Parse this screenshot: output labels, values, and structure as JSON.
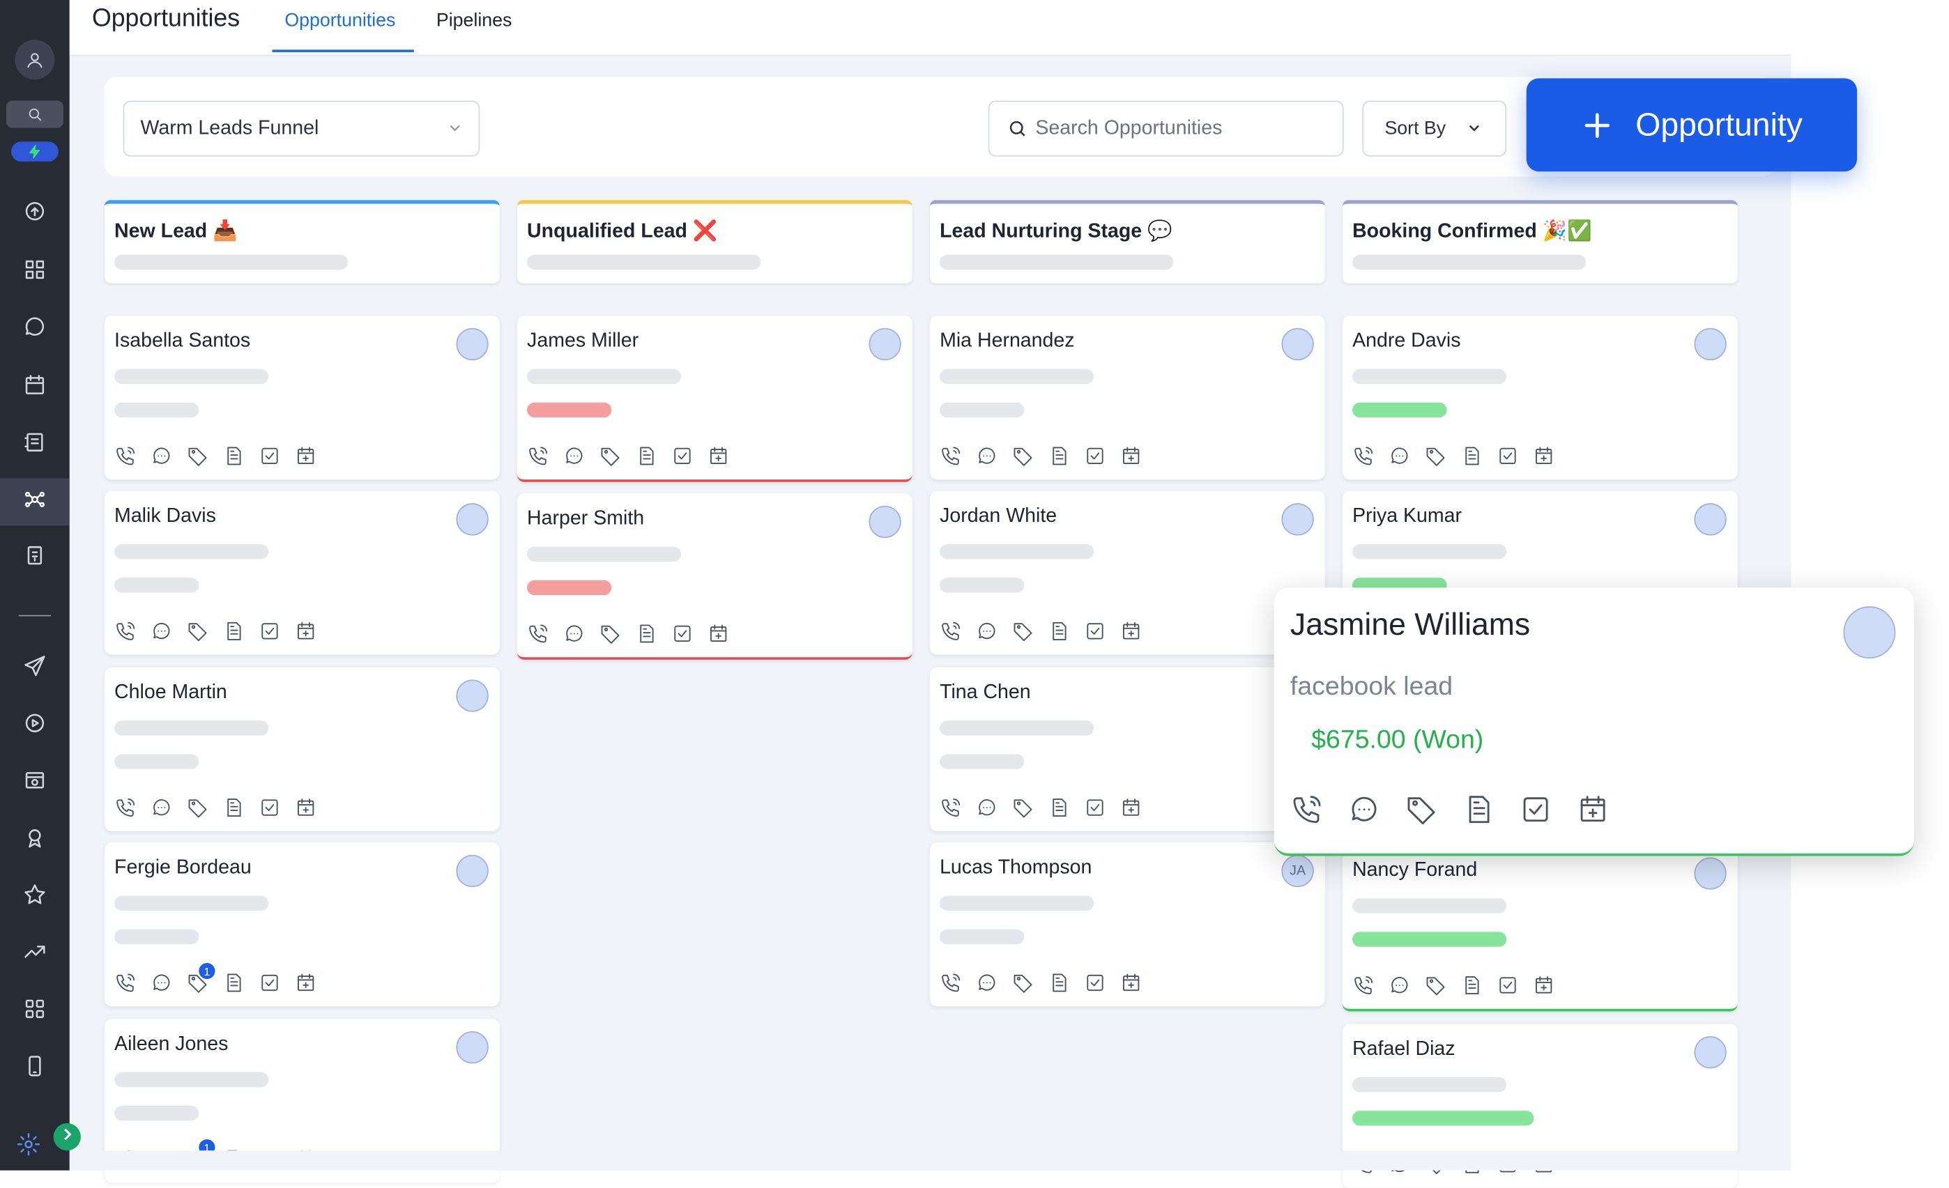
{
  "page": {
    "title": "Opportunities",
    "tabs": [
      {
        "label": "Opportunities",
        "active": true
      },
      {
        "label": "Pipelines",
        "active": false
      }
    ]
  },
  "sidebar": {
    "items": [
      {
        "icon": "user-avatar-icon"
      },
      {
        "icon": "search-icon"
      },
      {
        "icon": "lightning-icon"
      },
      {
        "icon": "rocket-icon"
      },
      {
        "icon": "dashboard-icon"
      },
      {
        "icon": "chat-icon"
      },
      {
        "icon": "calendar-icon"
      },
      {
        "icon": "contacts-icon"
      },
      {
        "icon": "opportunities-icon",
        "active": true
      },
      {
        "icon": "payments-icon"
      },
      {
        "icon": "divider"
      },
      {
        "icon": "send-icon"
      },
      {
        "icon": "automation-icon"
      },
      {
        "icon": "sites-icon"
      },
      {
        "icon": "memberships-icon"
      },
      {
        "icon": "star-icon"
      },
      {
        "icon": "trending-icon"
      },
      {
        "icon": "apps-grid-icon"
      },
      {
        "icon": "mobile-icon"
      },
      {
        "icon": "settings-icon"
      }
    ]
  },
  "toolbar": {
    "pipeline_select": "Warm Leads Funnel",
    "search_placeholder": "Search Opportunities",
    "sort_label": "Sort By",
    "add_label": "Opportunity"
  },
  "columns": [
    {
      "name": "New Lead 📥",
      "accent": "#3b9ff0",
      "cards": [
        {
          "name": "Isabella Santos",
          "status": "none"
        },
        {
          "name": "Malik Davis",
          "status": "none"
        },
        {
          "name": "Chloe Martin",
          "status": "none"
        },
        {
          "name": "Fergie Bordeau",
          "status": "none",
          "tag_badge": "1"
        },
        {
          "name": "Aileen Jones",
          "status": "none",
          "tag_badge": "1"
        }
      ]
    },
    {
      "name": "Unqualified Lead ❌",
      "accent": "#f2c94c",
      "cards": [
        {
          "name": "James Miller",
          "status": "lost"
        },
        {
          "name": "Harper Smith",
          "status": "lost"
        }
      ]
    },
    {
      "name": "Lead Nurturing Stage 💬",
      "accent": "#9aa6c9",
      "cards": [
        {
          "name": "Mia Hernandez",
          "status": "none"
        },
        {
          "name": "Jordan White",
          "status": "none"
        },
        {
          "name": "Tina Chen",
          "status": "none"
        },
        {
          "name": "Lucas Thompson",
          "status": "none",
          "avatar_initials": "JA"
        }
      ]
    },
    {
      "name": "Booking Confirmed 🎉✅",
      "accent": "#9aa6c9",
      "cards": [
        {
          "name": "Andre Davis",
          "status": "won"
        },
        {
          "name": "Priya Kumar",
          "status": "won"
        },
        {
          "name": "Nancy Forand",
          "status": "won"
        },
        {
          "name": "Rafael Diaz",
          "status": "won"
        }
      ]
    }
  ],
  "popup_card": {
    "name": "Jasmine Williams",
    "source": "facebook lead",
    "value": "$675.00 (Won)"
  },
  "colors": {
    "sidebar_bg": "#272b33",
    "primary": "#1a5ce6",
    "won": "#22b14c",
    "lost": "#e5484d"
  }
}
